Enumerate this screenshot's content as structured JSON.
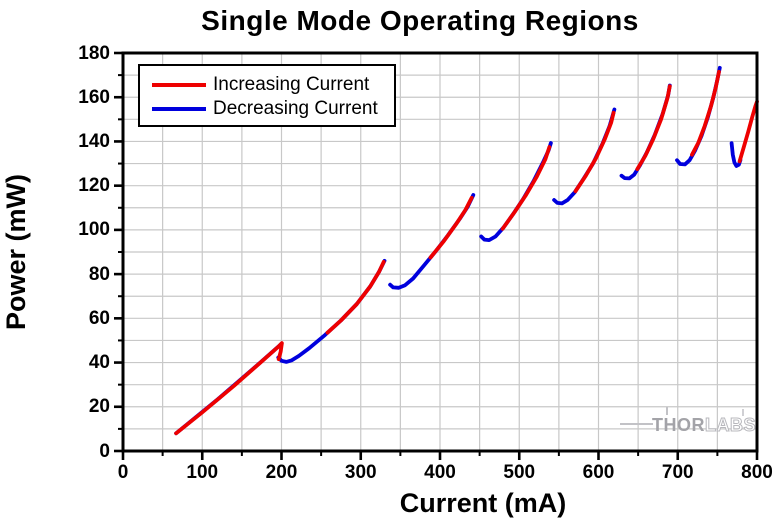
{
  "title": "Single Mode Operating Regions",
  "legend": {
    "items": [
      {
        "label": "Increasing Current",
        "color": "#ee0000"
      },
      {
        "label": "Decreasing Current",
        "color": "#0000dd"
      }
    ]
  },
  "watermark": {
    "thor": "THOR",
    "labs": "LABS"
  },
  "colors": {
    "increasing": "#ee0000",
    "decreasing": "#0000dd",
    "grid": "#c8c8c8",
    "frame": "#000000",
    "background": "#ffffff"
  },
  "chart_data": {
    "type": "line",
    "title": "Single Mode Operating Regions",
    "xlabel": "Current (mA)",
    "ylabel": "Power (mW)",
    "xlim": [
      0,
      800
    ],
    "ylim": [
      0,
      180
    ],
    "grid": "on",
    "legend_position": "top-left",
    "axes": {
      "x_major_ticks": [
        0,
        100,
        200,
        300,
        400,
        500,
        600,
        700,
        800
      ],
      "x_minor_ticks": [
        50,
        150,
        250,
        350,
        450,
        550,
        650,
        750
      ],
      "y_major_ticks": [
        0,
        20,
        40,
        60,
        80,
        100,
        120,
        140,
        160,
        180
      ],
      "y_minor_ticks": [
        10,
        30,
        50,
        70,
        90,
        110,
        130,
        150,
        170
      ],
      "grid_x": [
        50,
        100,
        150,
        200,
        250,
        300,
        350,
        400,
        450,
        500,
        550,
        600,
        650,
        700,
        750
      ],
      "grid_y": [
        10,
        20,
        30,
        40,
        50,
        60,
        70,
        80,
        90,
        100,
        110,
        120,
        130,
        140,
        150,
        160,
        170
      ]
    },
    "series": [
      {
        "name": "Decreasing Current",
        "color": "#0000dd",
        "units": {
          "x": "mA",
          "y": "mW"
        },
        "segments": [
          [
            [
              67,
              8
            ],
            [
              120,
              23.5
            ],
            [
              170,
              39
            ],
            [
              200,
              48.5
            ]
          ],
          [
            [
              196,
              42.3
            ],
            [
              200,
              40.8
            ],
            [
              206,
              40.3
            ],
            [
              213,
              41
            ],
            [
              222,
              43
            ],
            [
              235,
              46.5
            ],
            [
              255,
              52.5
            ],
            [
              275,
              59
            ],
            [
              295,
              66.5
            ],
            [
              312,
              74.5
            ],
            [
              323,
              81
            ],
            [
              330,
              86
            ]
          ],
          [
            [
              337,
              75.2
            ],
            [
              341,
              74
            ],
            [
              348,
              73.8
            ],
            [
              356,
              75
            ],
            [
              366,
              78
            ],
            [
              380,
              84
            ],
            [
              395,
              90.5
            ],
            [
              410,
              97.5
            ],
            [
              425,
              105
            ],
            [
              435,
              110.5
            ],
            [
              442,
              115.8
            ]
          ],
          [
            [
              452,
              97
            ],
            [
              456,
              95.6
            ],
            [
              462,
              95.4
            ],
            [
              470,
              97
            ],
            [
              480,
              101
            ],
            [
              492,
              107
            ],
            [
              505,
              114
            ],
            [
              518,
              122
            ],
            [
              530,
              130.5
            ],
            [
              537,
              136
            ],
            [
              540,
              139.3
            ]
          ],
          [
            [
              544,
              113.5
            ],
            [
              548,
              112.2
            ],
            [
              554,
              112
            ],
            [
              561,
              113.5
            ],
            [
              570,
              117
            ],
            [
              581,
              123
            ],
            [
              593,
              130
            ],
            [
              605,
              139
            ],
            [
              614,
              147
            ],
            [
              620,
              154.5
            ]
          ],
          [
            [
              629,
              124.5
            ],
            [
              633,
              123.4
            ],
            [
              639,
              123.3
            ],
            [
              645,
              125
            ],
            [
              652,
              129
            ],
            [
              661,
              135
            ],
            [
              671,
              143
            ],
            [
              681,
              152.5
            ],
            [
              688,
              161
            ],
            [
              690,
              165.3
            ]
          ],
          [
            [
              699,
              131.5
            ],
            [
              703,
              129.8
            ],
            [
              709,
              129.6
            ],
            [
              715,
              131.5
            ],
            [
              722,
              136
            ],
            [
              730,
              142.5
            ],
            [
              738,
              151
            ],
            [
              745,
              160
            ],
            [
              750,
              168
            ],
            [
              753,
              173.3
            ]
          ],
          [
            [
              768,
              139.2
            ],
            [
              769.5,
              134
            ],
            [
              771.5,
              130.5
            ],
            [
              774,
              128.9
            ],
            [
              777,
              129.5
            ],
            [
              779,
              131.5
            ]
          ]
        ]
      },
      {
        "name": "Increasing Current",
        "color": "#ee0000",
        "units": {
          "x": "mA",
          "y": "mW"
        },
        "segments": [
          [
            [
              67,
              8
            ],
            [
              100,
              17.5
            ],
            [
              140,
              29.5
            ],
            [
              175,
              40.5
            ],
            [
              197,
              47.5
            ],
            [
              200.5,
              48.8
            ],
            [
              199,
              45
            ],
            [
              196.5,
              41.5
            ]
          ],
          [
            [
              258,
              53.5
            ],
            [
              275,
              59
            ],
            [
              295,
              66.5
            ],
            [
              312,
              74.5
            ],
            [
              323,
              81
            ],
            [
              329,
              85.5
            ]
          ],
          [
            [
              388,
              87.5
            ],
            [
              405,
              95
            ],
            [
              420,
              102.5
            ],
            [
              432,
              109
            ],
            [
              440,
              114.5
            ]
          ],
          [
            [
              479,
              100.5
            ],
            [
              494,
              108
            ],
            [
              508,
              115.5
            ],
            [
              522,
              124
            ],
            [
              533,
              132
            ],
            [
              538,
              137.5
            ]
          ],
          [
            [
              571,
              117.5
            ],
            [
              584,
              124.5
            ],
            [
              597,
              132.5
            ],
            [
              608,
              141
            ],
            [
              616,
              148.5
            ],
            [
              619,
              153
            ]
          ],
          [
            [
              649,
              127.5
            ],
            [
              659,
              133.5
            ],
            [
              669,
              141
            ],
            [
              679,
              150
            ],
            [
              687,
              159.5
            ],
            [
              690,
              165
            ]
          ],
          [
            [
              718,
              134
            ],
            [
              726,
              139.5
            ],
            [
              734,
              147
            ],
            [
              742,
              156
            ],
            [
              748,
              164.5
            ],
            [
              752,
              171.5
            ]
          ],
          [
            [
              778,
              131
            ],
            [
              783,
              137
            ],
            [
              789,
              144.5
            ],
            [
              794,
              151
            ],
            [
              798,
              156
            ],
            [
              800,
              158
            ]
          ]
        ]
      }
    ],
    "annotations": [
      {
        "type": "watermark",
        "text": "THORLABS",
        "position": "bottom-right"
      }
    ]
  }
}
